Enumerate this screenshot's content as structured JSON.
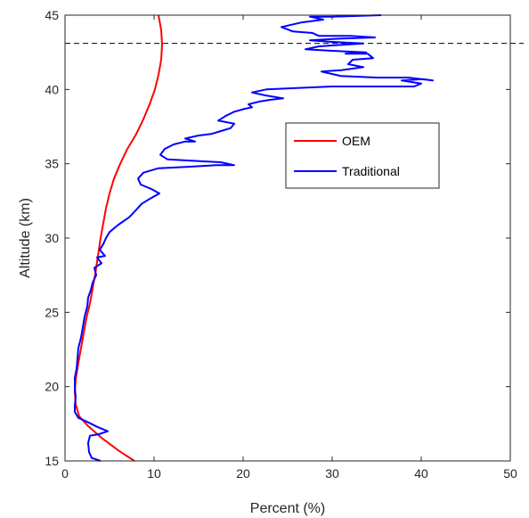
{
  "chart_data": {
    "type": "line",
    "xlabel": "Percent (%)",
    "ylabel": "Altitude (km)",
    "xlim": [
      0,
      50
    ],
    "ylim": [
      15,
      45
    ],
    "xticks": [
      0,
      10,
      20,
      30,
      40,
      50
    ],
    "yticks": [
      15,
      20,
      25,
      30,
      35,
      40,
      45
    ],
    "grid": false,
    "legend_position": "center-right",
    "reference_line": {
      "y": 43.1,
      "style": "dashed",
      "color": "#000000"
    },
    "series": [
      {
        "name": "OEM",
        "color": "#ff0000",
        "points": [
          [
            7.8,
            15.0
          ],
          [
            6.0,
            15.7
          ],
          [
            4.0,
            16.6
          ],
          [
            2.5,
            17.4
          ],
          [
            1.6,
            18.0
          ],
          [
            1.2,
            18.8
          ],
          [
            1.1,
            19.6
          ],
          [
            1.2,
            20.5
          ],
          [
            1.5,
            21.6
          ],
          [
            1.8,
            22.6
          ],
          [
            2.1,
            23.6
          ],
          [
            2.4,
            24.6
          ],
          [
            2.8,
            25.6
          ],
          [
            3.1,
            26.6
          ],
          [
            3.4,
            27.6
          ],
          [
            3.6,
            28.4
          ],
          [
            3.8,
            29.2
          ],
          [
            4.0,
            30.0
          ],
          [
            4.3,
            31.0
          ],
          [
            4.6,
            32.0
          ],
          [
            5.0,
            33.0
          ],
          [
            5.5,
            34.0
          ],
          [
            6.2,
            35.0
          ],
          [
            7.0,
            36.0
          ],
          [
            8.0,
            37.0
          ],
          [
            8.8,
            38.0
          ],
          [
            9.5,
            39.0
          ],
          [
            10.1,
            40.0
          ],
          [
            10.5,
            41.0
          ],
          [
            10.8,
            42.0
          ],
          [
            10.9,
            43.0
          ],
          [
            10.8,
            44.0
          ],
          [
            10.5,
            45.0
          ]
        ]
      },
      {
        "name": "Traditional",
        "color": "#0000ff",
        "points": [
          [
            4.0,
            15.0
          ],
          [
            3.0,
            15.2
          ],
          [
            2.7,
            15.6
          ],
          [
            2.6,
            16.2
          ],
          [
            2.8,
            16.7
          ],
          [
            3.8,
            16.8
          ],
          [
            4.8,
            17.0
          ],
          [
            3.6,
            17.3
          ],
          [
            2.6,
            17.6
          ],
          [
            1.5,
            17.9
          ],
          [
            1.1,
            18.3
          ],
          [
            1.1,
            18.7
          ],
          [
            1.2,
            19.3
          ],
          [
            1.1,
            19.9
          ],
          [
            1.1,
            20.6
          ],
          [
            1.3,
            21.2
          ],
          [
            1.4,
            21.9
          ],
          [
            1.5,
            22.6
          ],
          [
            1.8,
            23.3
          ],
          [
            2.0,
            24.0
          ],
          [
            2.2,
            24.7
          ],
          [
            2.5,
            25.4
          ],
          [
            2.6,
            26.0
          ],
          [
            2.9,
            26.5
          ],
          [
            3.1,
            27.0
          ],
          [
            3.5,
            27.5
          ],
          [
            3.3,
            28.0
          ],
          [
            4.1,
            28.3
          ],
          [
            3.6,
            28.7
          ],
          [
            4.5,
            28.8
          ],
          [
            3.9,
            29.2
          ],
          [
            4.3,
            29.6
          ],
          [
            4.6,
            30.0
          ],
          [
            5.0,
            30.4
          ],
          [
            6.0,
            30.9
          ],
          [
            7.2,
            31.4
          ],
          [
            8.0,
            31.9
          ],
          [
            8.6,
            32.3
          ],
          [
            9.4,
            32.6
          ],
          [
            10.0,
            32.8
          ],
          [
            10.6,
            33.0
          ],
          [
            9.7,
            33.3
          ],
          [
            8.5,
            33.6
          ],
          [
            8.2,
            34.0
          ],
          [
            8.8,
            34.4
          ],
          [
            10.5,
            34.7
          ],
          [
            14.0,
            34.8
          ],
          [
            17.0,
            34.9
          ],
          [
            19.0,
            34.9
          ],
          [
            17.5,
            35.1
          ],
          [
            14.2,
            35.2
          ],
          [
            11.5,
            35.3
          ],
          [
            10.7,
            35.6
          ],
          [
            11.2,
            36.0
          ],
          [
            12.2,
            36.3
          ],
          [
            13.5,
            36.5
          ],
          [
            14.6,
            36.5
          ],
          [
            13.5,
            36.7
          ],
          [
            15.0,
            36.9
          ],
          [
            16.4,
            37.0
          ],
          [
            17.5,
            37.2
          ],
          [
            18.6,
            37.4
          ],
          [
            19.0,
            37.7
          ],
          [
            17.2,
            37.9
          ],
          [
            18.0,
            38.2
          ],
          [
            19.0,
            38.5
          ],
          [
            20.2,
            38.7
          ],
          [
            21.0,
            38.8
          ],
          [
            20.6,
            39.0
          ],
          [
            21.9,
            39.2
          ],
          [
            23.0,
            39.3
          ],
          [
            24.5,
            39.4
          ],
          [
            22.5,
            39.6
          ],
          [
            21.0,
            39.8
          ],
          [
            22.6,
            40.0
          ],
          [
            26.0,
            40.1
          ],
          [
            30.0,
            40.2
          ],
          [
            35.0,
            40.2
          ],
          [
            39.2,
            40.2
          ],
          [
            40.0,
            40.4
          ],
          [
            37.8,
            40.6
          ],
          [
            40.2,
            40.7
          ],
          [
            41.3,
            40.6
          ],
          [
            38.5,
            40.8
          ],
          [
            35.0,
            40.8
          ],
          [
            31.0,
            40.9
          ],
          [
            28.8,
            41.2
          ],
          [
            31.0,
            41.3
          ],
          [
            33.5,
            41.5
          ],
          [
            31.8,
            41.7
          ],
          [
            32.3,
            42.0
          ],
          [
            34.6,
            42.1
          ],
          [
            34.0,
            42.4
          ],
          [
            31.5,
            42.4
          ],
          [
            33.8,
            42.5
          ],
          [
            30.0,
            42.6
          ],
          [
            27.0,
            42.7
          ],
          [
            28.5,
            42.9
          ],
          [
            33.5,
            43.1
          ],
          [
            30.0,
            43.2
          ],
          [
            27.5,
            43.3
          ],
          [
            30.0,
            43.4
          ],
          [
            34.8,
            43.5
          ],
          [
            32.0,
            43.6
          ],
          [
            28.5,
            43.6
          ],
          [
            27.8,
            43.8
          ],
          [
            25.6,
            43.9
          ],
          [
            24.3,
            44.2
          ],
          [
            26.5,
            44.5
          ],
          [
            29.0,
            44.7
          ],
          [
            27.5,
            44.9
          ],
          [
            30.0,
            44.9
          ],
          [
            35.5,
            45.0
          ]
        ]
      }
    ]
  }
}
